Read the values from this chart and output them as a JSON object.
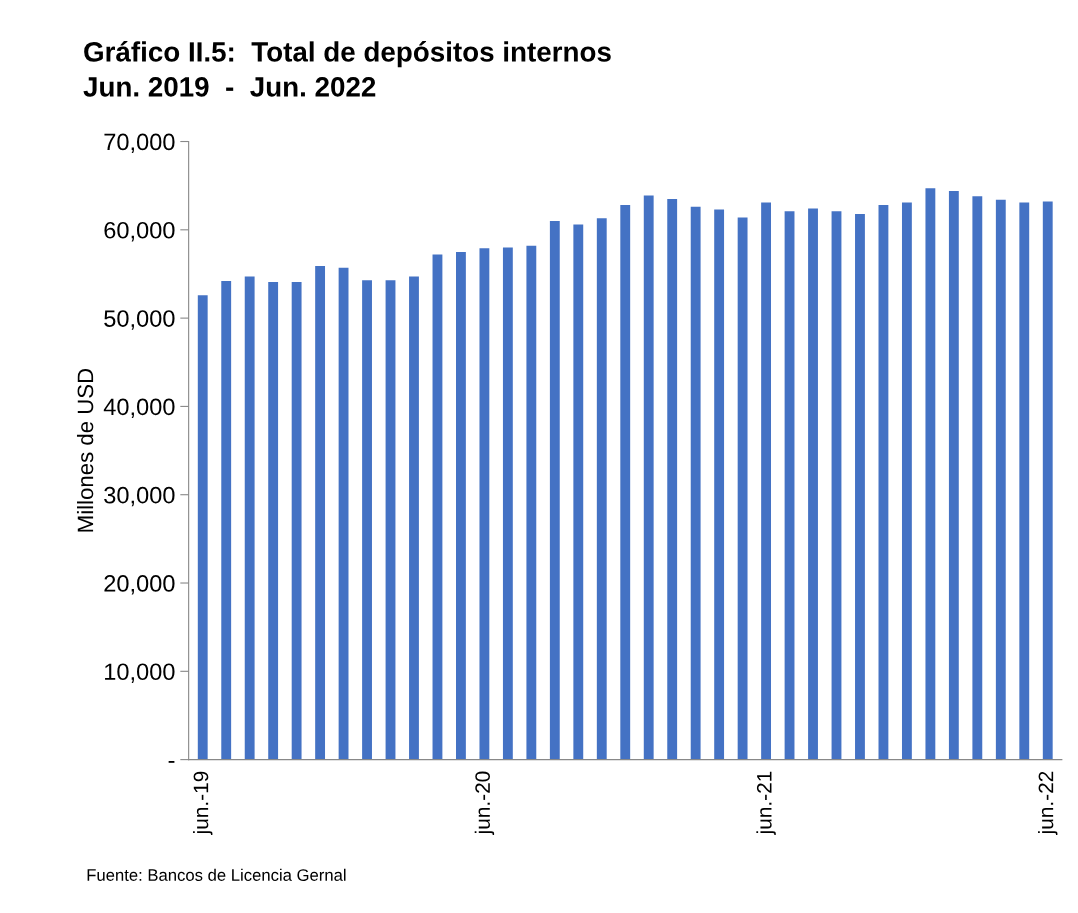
{
  "chart_data": {
    "type": "bar",
    "title": "Gráfico II.5:  Total de depósitos internos\nJun. 2019  -  Jun. 2022",
    "ylabel": "Millones de USD",
    "categories": [
      "jun.-19",
      null,
      null,
      null,
      null,
      null,
      null,
      null,
      null,
      null,
      null,
      null,
      "jun.-20",
      null,
      null,
      null,
      null,
      null,
      null,
      null,
      null,
      null,
      null,
      null,
      "jun.-21",
      null,
      null,
      null,
      null,
      null,
      null,
      null,
      null,
      null,
      null,
      null,
      "jun.-22"
    ],
    "values": [
      52600,
      54200,
      54700,
      54100,
      54100,
      55900,
      55700,
      54300,
      54300,
      54700,
      57200,
      57500,
      57900,
      58000,
      58200,
      61000,
      60600,
      61300,
      62800,
      63900,
      63500,
      62600,
      62300,
      61400,
      63100,
      62100,
      62400,
      62100,
      61800,
      62800,
      63100,
      64700,
      64400,
      63800,
      63400,
      63100,
      63200
    ],
    "color": "#4472c4",
    "ylim": [
      0,
      70000
    ],
    "yticks": [
      {
        "value": 0,
        "label": "-"
      },
      {
        "value": 10000,
        "label": "10,000"
      },
      {
        "value": 20000,
        "label": "20,000"
      },
      {
        "value": 30000,
        "label": "30,000"
      },
      {
        "value": 40000,
        "label": "40,000"
      },
      {
        "value": 50000,
        "label": "50,000"
      },
      {
        "value": 60000,
        "label": "60,000"
      },
      {
        "value": 70000,
        "label": "70,000"
      }
    ],
    "grid": false,
    "legend": false,
    "annotations": [
      "Fuente: Bancos de Licencia Gernal"
    ]
  }
}
